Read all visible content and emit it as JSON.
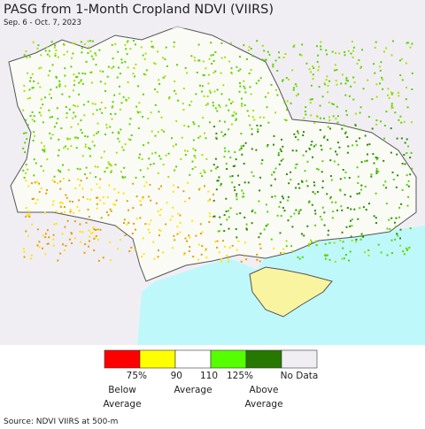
{
  "header": {
    "title": "PASG from 1-Month Cropland NDVI (VIIRS)",
    "subtitle": "Sep. 6 - Oct. 7, 2023"
  },
  "legend": {
    "colors": [
      "#ff0000",
      "#ffff00",
      "#ffffff",
      "#55ff00",
      "#267800",
      "#f1eef3"
    ],
    "tick_labels": [
      "75%",
      "90",
      "110",
      "125%"
    ],
    "no_data": "No Data",
    "classes": [
      {
        "lines": [
          "Below",
          "Average"
        ]
      },
      {
        "lines": [
          "Average"
        ]
      },
      {
        "lines": [
          "Above",
          "Average"
        ]
      }
    ]
  },
  "footer": {
    "source": "Source: NDVI VIIRS at 500-m"
  }
}
